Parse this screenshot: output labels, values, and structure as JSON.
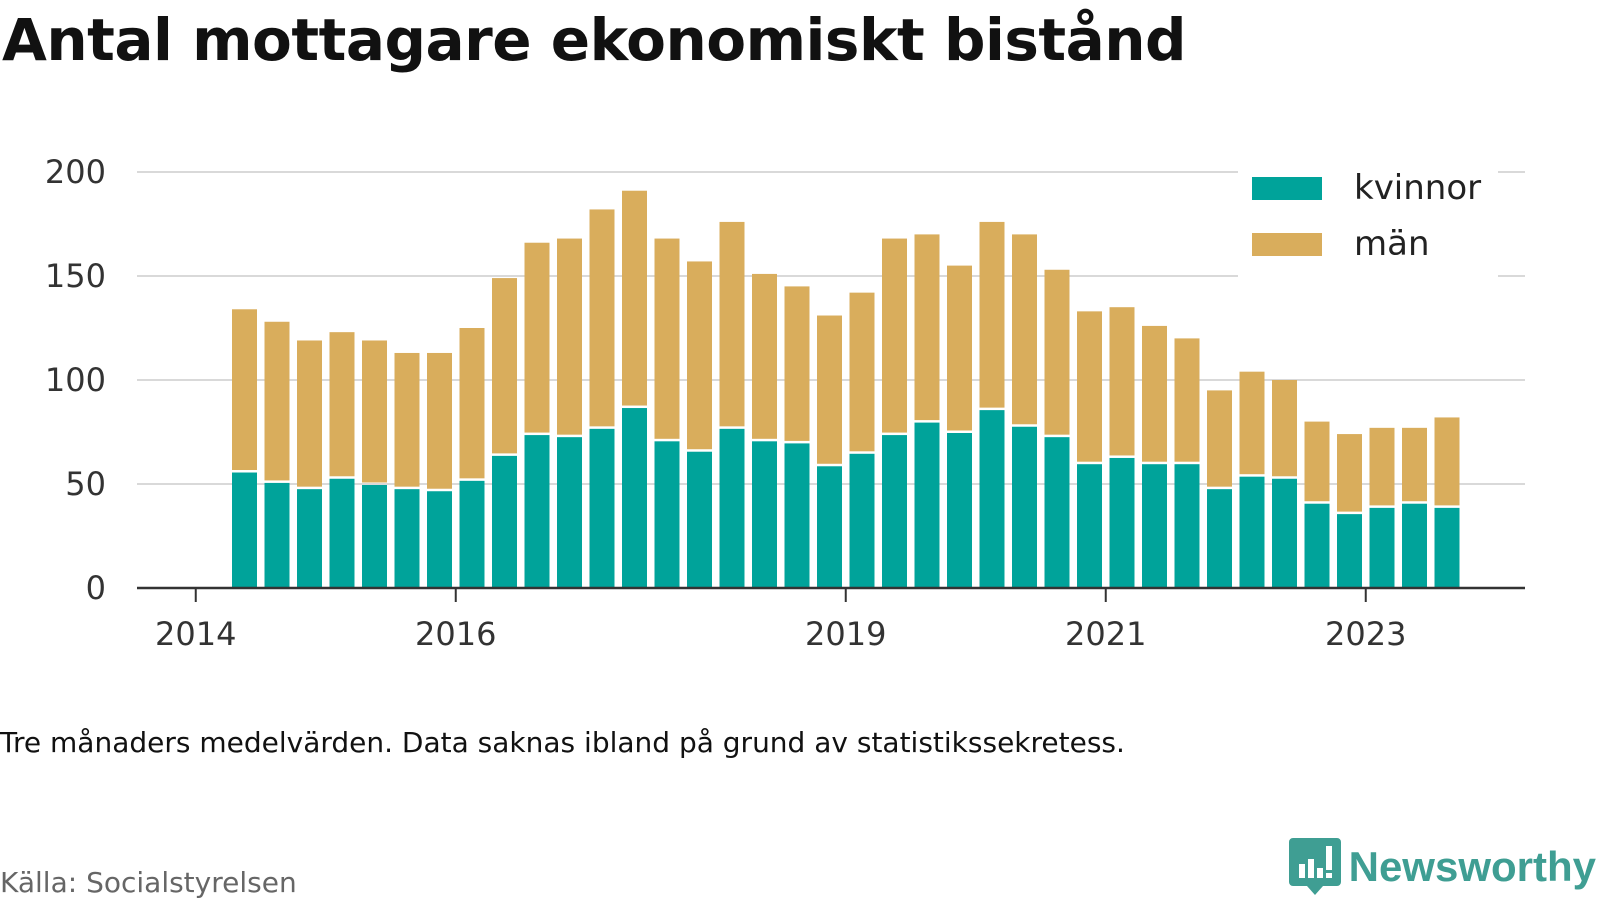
{
  "title": "Antal mottagare ekonomiskt bistånd",
  "note": "Tre månaders medelvärden. Data saknas ibland på grund av statistikssekretess.",
  "source": "Källa: Socialstyrelsen",
  "brand": {
    "name": "Newsworthy",
    "icon": "newsworthy-logo-icon",
    "color": "#3f9e93"
  },
  "chart_data": {
    "type": "bar",
    "stacked": true,
    "x_ticks": [
      "2014",
      "2016",
      "2019",
      "2021",
      "2023"
    ],
    "y_ticks": [
      "0",
      "50",
      "100",
      "150",
      "200"
    ],
    "ylim": [
      0,
      200
    ],
    "grid": true,
    "legend_position": "top-right",
    "categories": [
      "2014-Q2",
      "2014-Q3",
      "2014-Q4",
      "2015-Q1",
      "2015-Q2",
      "2015-Q3",
      "2015-Q4",
      "2016-Q1",
      "2016-Q2",
      "2016-Q3",
      "2016-Q4",
      "2017-Q1",
      "2017-Q2",
      "2017-Q3",
      "2017-Q4",
      "2018-Q1",
      "2018-Q2",
      "2018-Q3",
      "2018-Q4",
      "2019-Q1",
      "2019-Q2",
      "2019-Q3",
      "2019-Q4",
      "2020-Q1",
      "2020-Q2",
      "2020-Q3",
      "2020-Q4",
      "2021-Q1",
      "2021-Q2",
      "2021-Q3",
      "2021-Q4",
      "2022-Q1",
      "2022-Q2",
      "2022-Q3",
      "2022-Q4",
      "2023-Q1",
      "2023-Q2",
      "2023-Q3"
    ],
    "series": [
      {
        "name": "kvinnor",
        "color": "#00a39a",
        "values": [
          56,
          51,
          48,
          53,
          50,
          48,
          47,
          52,
          64,
          74,
          73,
          77,
          87,
          71,
          66,
          77,
          71,
          70,
          59,
          65,
          74,
          80,
          75,
          86,
          78,
          73,
          60,
          63,
          60,
          60,
          48,
          54,
          53,
          41,
          36,
          39,
          41,
          39
        ]
      },
      {
        "name": "män",
        "color": "#d9ad5c",
        "values": [
          78,
          77,
          71,
          70,
          69,
          65,
          66,
          73,
          85,
          92,
          95,
          105,
          104,
          97,
          91,
          99,
          80,
          75,
          72,
          77,
          94,
          90,
          80,
          90,
          92,
          80,
          73,
          72,
          66,
          60,
          47,
          50,
          47,
          39,
          38,
          38,
          36,
          43
        ]
      }
    ]
  }
}
